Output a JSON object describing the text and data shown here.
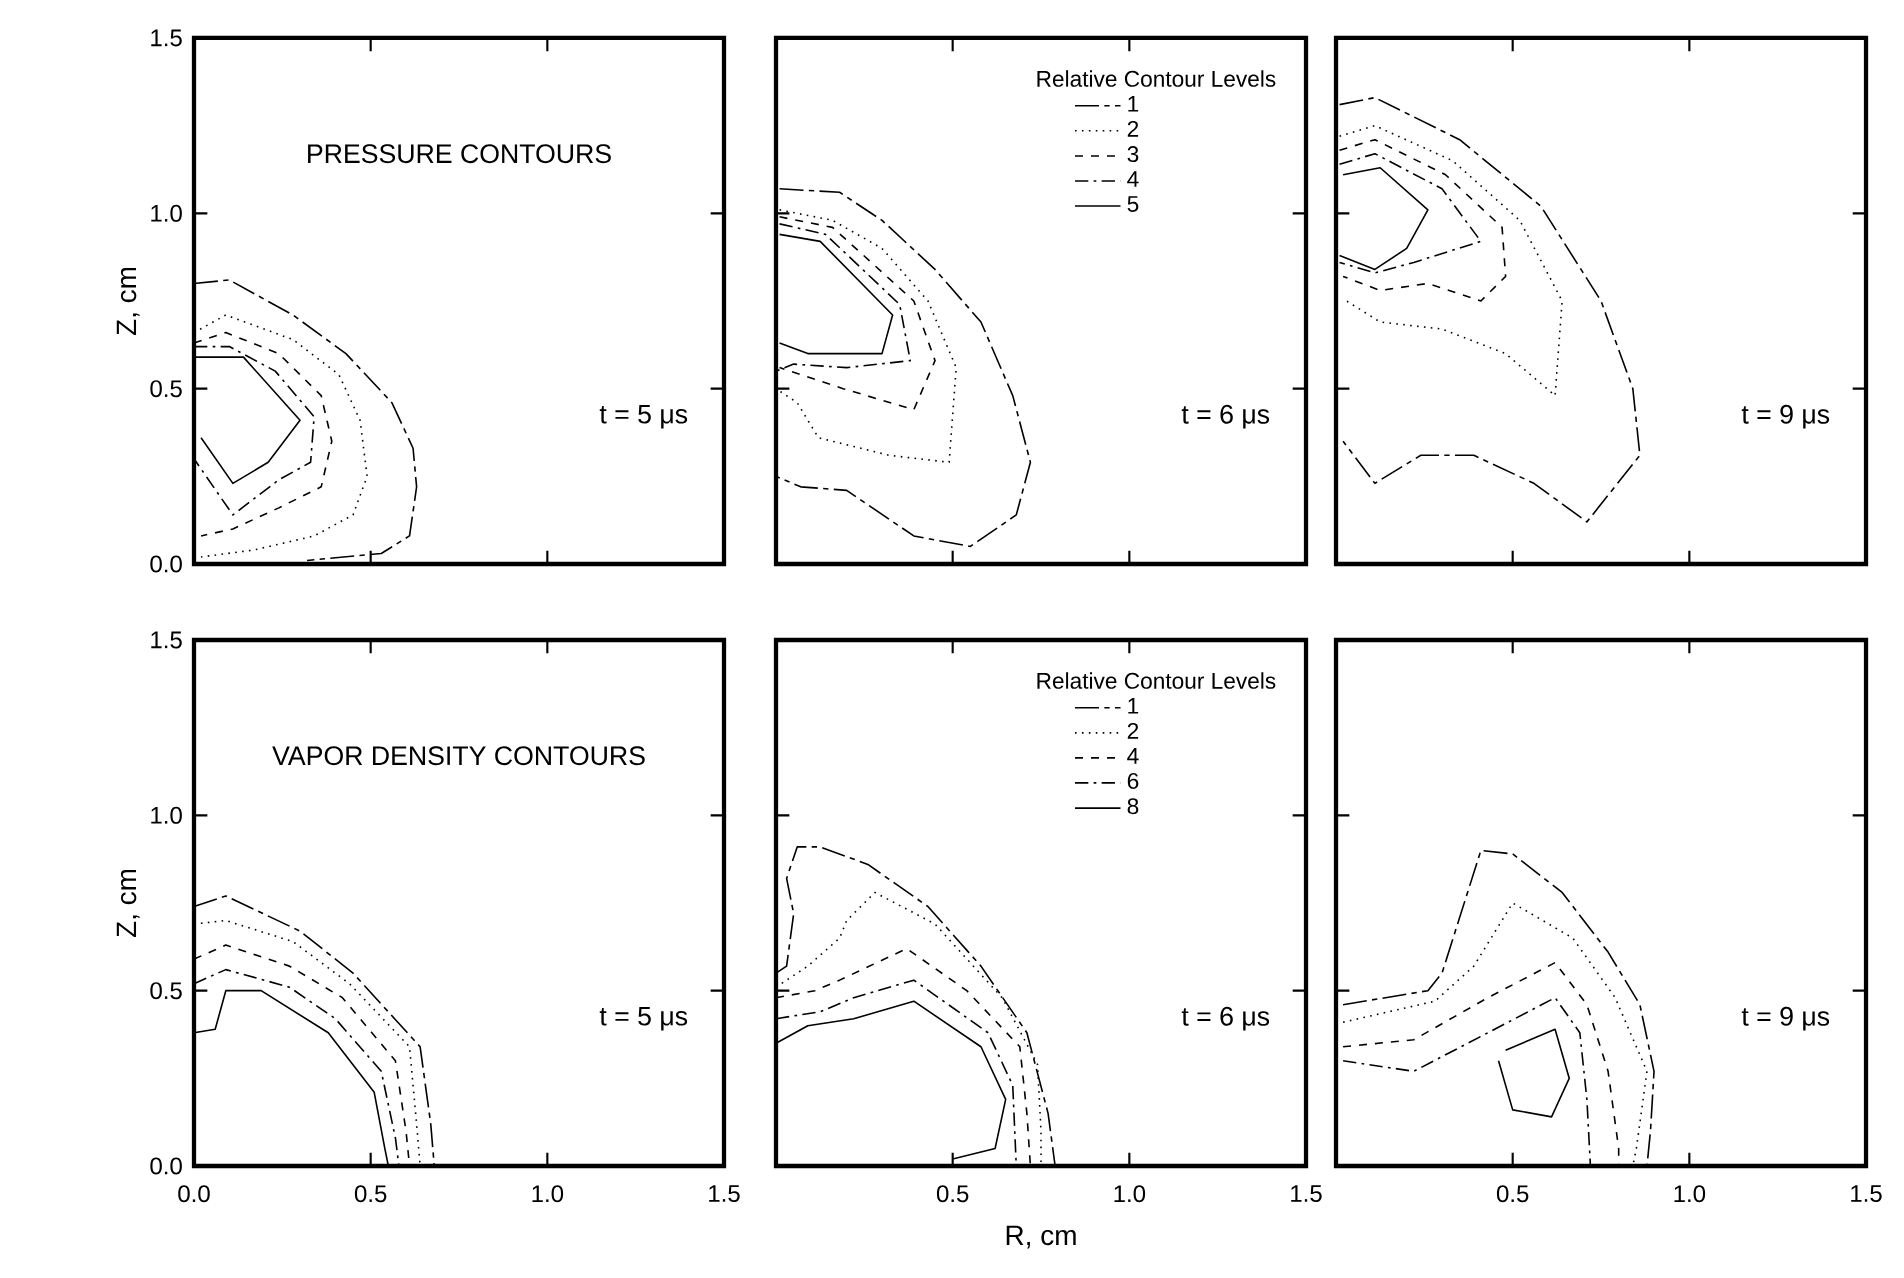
{
  "chart_data": [
    {
      "type": "line",
      "annotations": [
        "PRESSURE CONTOURS",
        "t = 5 μs"
      ],
      "ylabel": "Z, cm",
      "tick_labels": "y",
      "xlim": [
        0,
        1.5
      ],
      "ylim": [
        0,
        1.5
      ],
      "xticks": [
        {
          "value": 0,
          "label": null
        },
        {
          "value": 0.5,
          "label": null
        },
        {
          "value": 1,
          "label": null
        },
        {
          "value": 1.5,
          "label": null
        }
      ],
      "yticks": [
        {
          "value": 0,
          "label": "0.0"
        },
        {
          "value": 0.5,
          "label": "0.5"
        },
        {
          "value": 1,
          "label": "1.0"
        },
        {
          "value": 1.5,
          "label": "1.5"
        }
      ],
      "series": [
        {
          "color": "#000000",
          "line_style": "longdashdot",
          "x": [
            0,
            0.1,
            0.28,
            0.43,
            0.56,
            0.62,
            0.63,
            0.61,
            0.53,
            0.32
          ],
          "values": [
            0.8,
            0.81,
            0.71,
            0.6,
            0.46,
            0.33,
            0.22,
            0.08,
            0.03,
            0.01
          ]
        },
        {
          "color": "#000000",
          "line_style": "dotted",
          "x": [
            0,
            0.09,
            0.28,
            0.41,
            0.47,
            0.49,
            0.45,
            0.34,
            0.17,
            0.02
          ],
          "values": [
            0.66,
            0.71,
            0.64,
            0.54,
            0.41,
            0.25,
            0.14,
            0.08,
            0.04,
            0.02
          ]
        },
        {
          "color": "#000000",
          "line_style": "dashed",
          "x": [
            0,
            0.09,
            0.24,
            0.36,
            0.39,
            0.36,
            0.24,
            0.11,
            0.02
          ],
          "values": [
            0.63,
            0.66,
            0.6,
            0.48,
            0.35,
            0.22,
            0.16,
            0.1,
            0.08
          ]
        },
        {
          "color": "#000000",
          "line_style": "dashdot",
          "x": [
            0,
            0.1,
            0.23,
            0.34,
            0.33,
            0.24,
            0.11,
            0.0
          ],
          "values": [
            0.62,
            0.62,
            0.55,
            0.42,
            0.29,
            0.24,
            0.14,
            0.3
          ]
        },
        {
          "color": "#000000",
          "line_style": "solid",
          "x": [
            0,
            0.14,
            0.3,
            0.21,
            0.11,
            0.02
          ],
          "values": [
            0.59,
            0.59,
            0.41,
            0.29,
            0.23,
            0.36
          ]
        }
      ]
    },
    {
      "type": "line",
      "annotations": [
        "t = 6 μs"
      ],
      "legend_title": "Relative Contour Levels",
      "legend": "top right",
      "tick_labels": false,
      "xlim": [
        0,
        1.5
      ],
      "ylim": [
        0,
        1.5
      ],
      "xticks": [
        {
          "value": 0,
          "label": null
        },
        {
          "value": 0.5,
          "label": null
        },
        {
          "value": 1,
          "label": null
        },
        {
          "value": 1.5,
          "label": null
        }
      ],
      "yticks": [
        {
          "value": 0,
          "label": null
        },
        {
          "value": 0.5,
          "label": null
        },
        {
          "value": 1,
          "label": null
        },
        {
          "value": 1.5,
          "label": null
        }
      ],
      "series": [
        {
          "name": "1",
          "color": "#000000",
          "line_style": "longdashdot",
          "x": [
            0.01,
            0.18,
            0.3,
            0.45,
            0.58,
            0.67,
            0.72,
            0.68,
            0.55,
            0.39,
            0.2,
            0.07,
            0.0
          ],
          "values": [
            1.07,
            1.06,
            0.98,
            0.84,
            0.69,
            0.48,
            0.29,
            0.14,
            0.05,
            0.08,
            0.21,
            0.22,
            0.25
          ]
        },
        {
          "name": "2",
          "color": "#000000",
          "line_style": "dotted",
          "x": [
            0.01,
            0.16,
            0.3,
            0.43,
            0.51,
            0.49,
            0.32,
            0.12,
            0.06,
            0.0
          ],
          "values": [
            1.01,
            0.98,
            0.9,
            0.75,
            0.56,
            0.29,
            0.31,
            0.36,
            0.46,
            0.5
          ]
        },
        {
          "name": "3",
          "color": "#000000",
          "line_style": "dashed",
          "x": [
            0.01,
            0.16,
            0.39,
            0.45,
            0.39,
            0.19,
            0.07,
            0.01
          ],
          "values": [
            0.99,
            0.96,
            0.75,
            0.58,
            0.44,
            0.5,
            0.54,
            0.56
          ]
        },
        {
          "name": "4",
          "color": "#000000",
          "line_style": "dashdot",
          "x": [
            0.01,
            0.14,
            0.35,
            0.38,
            0.2,
            0.05,
            0.0
          ],
          "values": [
            0.97,
            0.94,
            0.74,
            0.58,
            0.56,
            0.57,
            0.55
          ]
        },
        {
          "name": "5",
          "color": "#000000",
          "line_style": "solid",
          "x": [
            0.01,
            0.125,
            0.33,
            0.3,
            0.09,
            0.01
          ],
          "values": [
            0.94,
            0.92,
            0.71,
            0.6,
            0.6,
            0.63
          ]
        }
      ]
    },
    {
      "type": "line",
      "annotations": [
        "t = 9 μs"
      ],
      "tick_labels": false,
      "xlim": [
        0,
        1.5
      ],
      "ylim": [
        0,
        1.5
      ],
      "xticks": [
        {
          "value": 0,
          "label": null
        },
        {
          "value": 0.5,
          "label": null
        },
        {
          "value": 1,
          "label": null
        },
        {
          "value": 1.5,
          "label": null
        }
      ],
      "yticks": [
        {
          "value": 0,
          "label": null
        },
        {
          "value": 0.5,
          "label": null
        },
        {
          "value": 1,
          "label": null
        },
        {
          "value": 1.5,
          "label": null
        }
      ],
      "series": [
        {
          "color": "#000000",
          "line_style": "longdashdot",
          "x": [
            0.01,
            0.11,
            0.35,
            0.58,
            0.75,
            0.84,
            0.86,
            0.71,
            0.56,
            0.39,
            0.24,
            0.11,
            0.02
          ],
          "values": [
            1.31,
            1.33,
            1.21,
            1.02,
            0.75,
            0.5,
            0.31,
            0.12,
            0.23,
            0.31,
            0.31,
            0.23,
            0.35
          ]
        },
        {
          "color": "#000000",
          "line_style": "dotted",
          "x": [
            0.01,
            0.11,
            0.33,
            0.52,
            0.64,
            0.62,
            0.48,
            0.3,
            0.125,
            0.03
          ],
          "values": [
            1.22,
            1.25,
            1.15,
            0.98,
            0.75,
            0.48,
            0.6,
            0.67,
            0.69,
            0.75
          ]
        },
        {
          "color": "#000000",
          "line_style": "dashed",
          "x": [
            0.01,
            0.11,
            0.31,
            0.47,
            0.48,
            0.41,
            0.26,
            0.125,
            0.02
          ],
          "values": [
            1.18,
            1.21,
            1.11,
            0.96,
            0.82,
            0.75,
            0.8,
            0.78,
            0.82
          ]
        },
        {
          "color": "#000000",
          "line_style": "dashdot",
          "x": [
            0.01,
            0.11,
            0.3,
            0.41,
            0.22,
            0.11,
            0.01
          ],
          "values": [
            1.14,
            1.17,
            1.07,
            0.92,
            0.86,
            0.83,
            0.86
          ]
        },
        {
          "color": "#000000",
          "line_style": "solid",
          "x": [
            0.02,
            0.125,
            0.26,
            0.2,
            0.11,
            0.01
          ],
          "values": [
            1.11,
            1.13,
            1.01,
            0.9,
            0.84,
            0.88
          ]
        }
      ]
    },
    {
      "type": "line",
      "annotations": [
        "VAPOR DENSITY CONTOURS",
        "t = 5 μs"
      ],
      "ylabel": "Z, cm",
      "xlim": [
        0,
        1.5
      ],
      "ylim": [
        0,
        1.5
      ],
      "xticks": [
        {
          "value": 0,
          "label": "0.0"
        },
        {
          "value": 0.5,
          "label": "0.5"
        },
        {
          "value": 1,
          "label": "1.0"
        },
        {
          "value": 1.5,
          "label": "1.5"
        }
      ],
      "yticks": [
        {
          "value": 0,
          "label": "0.0"
        },
        {
          "value": 0.5,
          "label": "0.5"
        },
        {
          "value": 1,
          "label": "1.0"
        },
        {
          "value": 1.5,
          "label": "1.5"
        }
      ],
      "series": [
        {
          "color": "#000000",
          "line_style": "longdashdot",
          "x": [
            0,
            0.09,
            0.3,
            0.45,
            0.64,
            0.67,
            0.68
          ],
          "values": [
            0.74,
            0.77,
            0.67,
            0.55,
            0.34,
            0.12,
            0.0
          ]
        },
        {
          "color": "#000000",
          "line_style": "dotted",
          "x": [
            0,
            0.09,
            0.28,
            0.44,
            0.61,
            0.63,
            0.64
          ],
          "values": [
            0.69,
            0.7,
            0.64,
            0.52,
            0.34,
            0.12,
            0.0
          ]
        },
        {
          "color": "#000000",
          "line_style": "dashed",
          "x": [
            0,
            0.09,
            0.27,
            0.42,
            0.57,
            0.6,
            0.61
          ],
          "values": [
            0.59,
            0.63,
            0.57,
            0.48,
            0.3,
            0.1,
            0.0
          ]
        },
        {
          "color": "#000000",
          "line_style": "dashdot",
          "x": [
            0,
            0.09,
            0.27,
            0.4,
            0.53,
            0.57,
            0.58
          ],
          "values": [
            0.52,
            0.56,
            0.51,
            0.42,
            0.27,
            0.08,
            0.0
          ]
        },
        {
          "color": "#000000",
          "line_style": "solid",
          "x": [
            0,
            0.06,
            0.09,
            0.19,
            0.38,
            0.51,
            0.54,
            0.55
          ],
          "values": [
            0.38,
            0.39,
            0.5,
            0.5,
            0.38,
            0.21,
            0.05,
            0.0
          ]
        }
      ]
    },
    {
      "type": "line",
      "annotations": [
        "t = 6 μs"
      ],
      "legend_title": "Relative Contour Levels",
      "legend": "top right",
      "xlabel": "R, cm",
      "tick_labels": "x",
      "xlim": [
        0,
        1.5
      ],
      "ylim": [
        0,
        1.5
      ],
      "xticks": [
        {
          "value": 0,
          "label": null
        },
        {
          "value": 0.5,
          "label": "0.5"
        },
        {
          "value": 1,
          "label": "1.0"
        },
        {
          "value": 1.5,
          "label": "1.5"
        }
      ],
      "yticks": [
        {
          "value": 0,
          "label": null
        },
        {
          "value": 0.5,
          "label": null
        },
        {
          "value": 1,
          "label": null
        },
        {
          "value": 1.5,
          "label": null
        }
      ],
      "series": [
        {
          "name": "1",
          "color": "#000000",
          "line_style": "longdashdot",
          "x": [
            0.0,
            0.03,
            0.05,
            0.03,
            0.06,
            0.125,
            0.26,
            0.43,
            0.58,
            0.71,
            0.77,
            0.79
          ],
          "values": [
            0.55,
            0.57,
            0.72,
            0.82,
            0.91,
            0.91,
            0.86,
            0.74,
            0.57,
            0.38,
            0.15,
            0.0
          ]
        },
        {
          "name": "2",
          "color": "#000000",
          "line_style": "dotted",
          "x": [
            0,
            0.09,
            0.18,
            0.2,
            0.28,
            0.45,
            0.64,
            0.74,
            0.75,
            0.75
          ],
          "values": [
            0.51,
            0.57,
            0.65,
            0.7,
            0.78,
            0.69,
            0.48,
            0.29,
            0.1,
            0.0
          ]
        },
        {
          "name": "4",
          "color": "#000000",
          "line_style": "dashed",
          "x": [
            0,
            0.11,
            0.18,
            0.37,
            0.54,
            0.69,
            0.71,
            0.72
          ],
          "values": [
            0.48,
            0.5,
            0.53,
            0.62,
            0.5,
            0.34,
            0.15,
            0.0
          ]
        },
        {
          "name": "6",
          "color": "#000000",
          "line_style": "dashdot",
          "x": [
            0,
            0.125,
            0.22,
            0.39,
            0.6,
            0.67,
            0.68
          ],
          "values": [
            0.42,
            0.44,
            0.48,
            0.53,
            0.38,
            0.23,
            0.0
          ]
        },
        {
          "name": "8",
          "color": "#000000",
          "line_style": "solid",
          "x": [
            0.0,
            0.09,
            0.22,
            0.39,
            0.58,
            0.65,
            0.62,
            0.5
          ],
          "values": [
            0.35,
            0.4,
            0.42,
            0.47,
            0.34,
            0.19,
            0.05,
            0.02
          ]
        }
      ]
    },
    {
      "type": "line",
      "annotations": [
        "t = 9 μs"
      ],
      "tick_labels": "x",
      "xlim": [
        0,
        1.5
      ],
      "ylim": [
        0,
        1.5
      ],
      "xticks": [
        {
          "value": 0,
          "label": null
        },
        {
          "value": 0.5,
          "label": "0.5"
        },
        {
          "value": 1,
          "label": "1.0"
        },
        {
          "value": 1.5,
          "label": "1.5"
        }
      ],
      "yticks": [
        {
          "value": 0,
          "label": null
        },
        {
          "value": 0.5,
          "label": null
        },
        {
          "value": 1,
          "label": null
        },
        {
          "value": 1.5,
          "label": null
        }
      ],
      "series": [
        {
          "color": "#000000",
          "line_style": "longdashdot",
          "x": [
            0.02,
            0.26,
            0.3,
            0.41,
            0.5,
            0.64,
            0.77,
            0.86,
            0.9,
            0.89,
            0.88
          ],
          "values": [
            0.46,
            0.5,
            0.55,
            0.9,
            0.89,
            0.78,
            0.61,
            0.46,
            0.27,
            0.1,
            0.0
          ]
        },
        {
          "color": "#000000",
          "line_style": "dotted",
          "x": [
            0.02,
            0.28,
            0.39,
            0.5,
            0.67,
            0.79,
            0.88,
            0.85,
            0.84
          ],
          "values": [
            0.41,
            0.47,
            0.57,
            0.75,
            0.65,
            0.48,
            0.27,
            0.05,
            0.0
          ]
        },
        {
          "color": "#000000",
          "line_style": "dashed",
          "x": [
            0.02,
            0.22,
            0.43,
            0.62,
            0.71,
            0.77,
            0.8,
            0.8
          ],
          "values": [
            0.34,
            0.36,
            0.48,
            0.58,
            0.46,
            0.27,
            0.05,
            0.0
          ]
        },
        {
          "color": "#000000",
          "line_style": "dashdot",
          "x": [
            0.02,
            0.22,
            0.43,
            0.62,
            0.69,
            0.71,
            0.72
          ],
          "values": [
            0.3,
            0.27,
            0.38,
            0.48,
            0.38,
            0.19,
            0.0
          ]
        },
        {
          "color": "#000000",
          "line_style": "solid",
          "x": [
            0.48,
            0.62,
            0.66,
            0.61,
            0.5,
            0.46
          ],
          "values": [
            0.33,
            0.39,
            0.25,
            0.14,
            0.16,
            0.3
          ]
        }
      ]
    }
  ]
}
